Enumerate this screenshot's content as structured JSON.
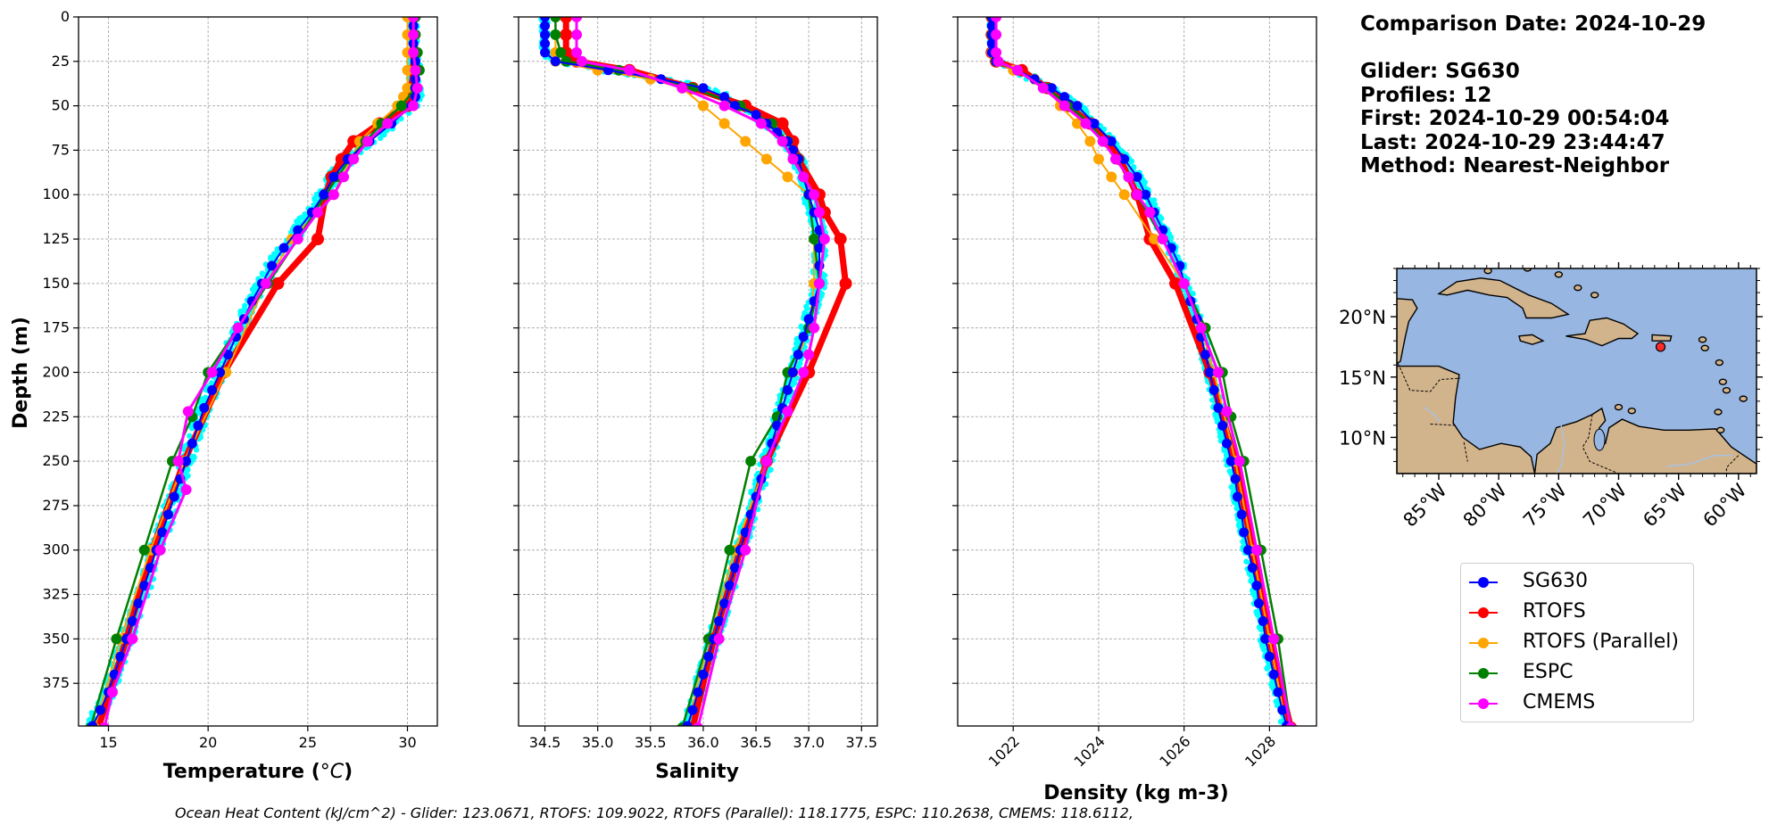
{
  "info": {
    "comparison_date": "Comparison Date: 2024-10-29",
    "glider": "Glider: SG630",
    "profiles": "Profiles: 12",
    "first": "First: 2024-10-29 00:54:04",
    "last": "Last: 2024-10-29 23:44:47",
    "method": "Method: Nearest-Neighbor"
  },
  "footer": "Ocean Heat Content (kJ/cm^2) - Glider: 123.0671,  RTOFS: 109.9022,  RTOFS (Parallel): 118.1775,  ESPC: 110.2638,  CMEMS: 118.6112,",
  "legend": [
    {
      "label": "SG630",
      "color": "#0000ff"
    },
    {
      "label": "RTOFS",
      "color": "#ff0000"
    },
    {
      "label": "RTOFS (Parallel)",
      "color": "#ffa500"
    },
    {
      "label": "ESPC",
      "color": "#008000"
    },
    {
      "label": "CMEMS",
      "color": "#ff00ff"
    }
  ],
  "colors": {
    "SG630": "#0000ff",
    "RTOFS": "#ff0000",
    "RTOFS (Parallel)": "#ffa500",
    "ESPC": "#008000",
    "CMEMS": "#ff00ff",
    "glider_scatter": "#00ffff",
    "ocean": "#97b6e1",
    "land": "#d2b48c"
  },
  "chart_data": [
    {
      "type": "line",
      "xlabel": "Temperature (°C)",
      "ylabel": "Depth (m)",
      "xlim": [
        13.5,
        31.5
      ],
      "ylim": [
        399,
        0
      ],
      "y_inverted": true,
      "grid": true,
      "xticks": [
        "15",
        "20",
        "25",
        "30"
      ],
      "yticks": [
        "0",
        "25",
        "50",
        "75",
        "100",
        "125",
        "150",
        "175",
        "200",
        "225",
        "250",
        "275",
        "300",
        "325",
        "350",
        "375"
      ],
      "series": [
        {
          "name": "SG630",
          "depth": [
            0,
            5,
            10,
            15,
            20,
            25,
            30,
            35,
            40,
            45,
            50,
            60,
            70,
            80,
            90,
            100,
            110,
            120,
            130,
            140,
            150,
            160,
            170,
            180,
            190,
            200,
            210,
            220,
            230,
            240,
            250,
            260,
            270,
            280,
            290,
            300,
            310,
            320,
            330,
            340,
            350,
            360,
            370,
            380,
            390,
            399
          ],
          "values": [
            30.3,
            30.3,
            30.3,
            30.3,
            30.3,
            30.4,
            30.4,
            30.4,
            30.4,
            30.4,
            30.2,
            29.2,
            28.1,
            27.0,
            26.3,
            25.8,
            25.2,
            24.5,
            23.8,
            23.2,
            22.7,
            22.2,
            21.8,
            21.4,
            21.0,
            20.6,
            20.2,
            19.8,
            19.5,
            19.2,
            18.9,
            18.6,
            18.3,
            18.0,
            17.7,
            17.4,
            17.1,
            16.8,
            16.5,
            16.2,
            15.9,
            15.6,
            15.3,
            15.0,
            14.6,
            14.2
          ]
        },
        {
          "name": "RTOFS",
          "depth": [
            0,
            10,
            20,
            30,
            40,
            50,
            60,
            70,
            80,
            90,
            100,
            125,
            150,
            200,
            250,
            300,
            350,
            400
          ],
          "values": [
            30.3,
            30.3,
            30.3,
            30.3,
            30.2,
            30.0,
            28.6,
            27.3,
            26.7,
            26.2,
            25.9,
            25.5,
            23.5,
            20.8,
            18.8,
            17.2,
            15.9,
            14.5
          ]
        },
        {
          "name": "RTOFS (Parallel)",
          "depth": [
            0,
            10,
            20,
            30,
            40,
            45,
            50,
            60,
            70,
            80,
            90,
            100,
            125,
            150,
            200,
            250,
            300,
            350,
            400
          ],
          "values": [
            30.0,
            30.0,
            30.0,
            30.0,
            30.0,
            29.8,
            29.5,
            28.5,
            27.6,
            27.2,
            26.7,
            26.3,
            24.2,
            22.9,
            20.9,
            18.8,
            17.1,
            15.6,
            14.3
          ]
        },
        {
          "name": "ESPC",
          "depth": [
            0,
            10,
            20,
            30,
            40,
            50,
            60,
            70,
            80,
            90,
            100,
            125,
            150,
            175,
            200,
            225,
            250,
            300,
            350,
            400
          ],
          "values": [
            30.4,
            30.4,
            30.5,
            30.6,
            30.4,
            29.7,
            28.7,
            27.9,
            27.1,
            26.5,
            25.9,
            24.5,
            23.0,
            21.5,
            20.0,
            19.2,
            18.2,
            16.8,
            15.4,
            14.1
          ]
        },
        {
          "name": "CMEMS",
          "depth": [
            0,
            10,
            20,
            30,
            40,
            50,
            60,
            70,
            80,
            90,
            100,
            110,
            125,
            150,
            175,
            200,
            222,
            250,
            266,
            300,
            350,
            380,
            400
          ],
          "values": [
            30.3,
            30.3,
            30.3,
            30.4,
            30.5,
            30.3,
            29.0,
            28.0,
            27.3,
            26.8,
            26.3,
            25.5,
            24.5,
            22.9,
            21.5,
            20.2,
            19.0,
            18.5,
            18.9,
            17.6,
            16.2,
            15.2,
            14.8
          ]
        }
      ]
    },
    {
      "type": "line",
      "xlabel": "Salinity",
      "xlim": [
        34.25,
        37.65
      ],
      "ylim": [
        399,
        0
      ],
      "y_inverted": true,
      "grid": true,
      "xticks": [
        "34.5",
        "35.0",
        "35.5",
        "36.0",
        "36.5",
        "37.0",
        "37.5"
      ],
      "series": [
        {
          "name": "SG630",
          "depth": [
            0,
            5,
            10,
            15,
            20,
            25,
            30,
            35,
            40,
            45,
            50,
            55,
            60,
            65,
            70,
            75,
            80,
            90,
            100,
            110,
            120,
            130,
            140,
            150,
            160,
            170,
            180,
            190,
            200,
            210,
            220,
            230,
            240,
            250,
            260,
            270,
            280,
            290,
            300,
            310,
            320,
            330,
            340,
            350,
            360,
            370,
            380,
            390,
            399
          ],
          "values": [
            34.5,
            34.5,
            34.5,
            34.5,
            34.5,
            34.6,
            35.1,
            35.6,
            36.0,
            36.2,
            36.3,
            36.5,
            36.6,
            36.7,
            36.8,
            36.85,
            36.9,
            36.95,
            37.0,
            37.05,
            37.1,
            37.1,
            37.1,
            37.1,
            37.05,
            37.0,
            36.95,
            36.9,
            36.85,
            36.8,
            36.75,
            36.7,
            36.65,
            36.6,
            36.55,
            36.5,
            36.45,
            36.4,
            36.35,
            36.3,
            36.25,
            36.2,
            36.15,
            36.1,
            36.05,
            36.0,
            35.95,
            35.9,
            35.85
          ]
        },
        {
          "name": "RTOFS",
          "depth": [
            0,
            10,
            20,
            25,
            30,
            40,
            50,
            60,
            70,
            80,
            100,
            110,
            125,
            150,
            200,
            250,
            300,
            350,
            400
          ],
          "values": [
            34.7,
            34.7,
            34.7,
            34.8,
            35.3,
            35.9,
            36.4,
            36.75,
            36.85,
            36.9,
            37.1,
            37.15,
            37.3,
            37.35,
            37.0,
            36.6,
            36.35,
            36.1,
            35.9
          ]
        },
        {
          "name": "RTOFS (Parallel)",
          "depth": [
            0,
            10,
            20,
            25,
            30,
            35,
            40,
            50,
            60,
            70,
            80,
            90,
            100,
            125,
            150,
            175,
            200,
            250,
            300,
            350,
            400
          ],
          "values": [
            34.6,
            34.6,
            34.6,
            34.6,
            35.0,
            35.5,
            35.8,
            36.0,
            36.2,
            36.4,
            36.6,
            36.8,
            37.0,
            37.05,
            37.05,
            37.0,
            36.85,
            36.6,
            36.3,
            36.05,
            35.85
          ]
        },
        {
          "name": "ESPC",
          "depth": [
            0,
            10,
            20,
            25,
            30,
            40,
            50,
            60,
            70,
            80,
            90,
            100,
            125,
            150,
            175,
            200,
            225,
            250,
            300,
            350,
            400
          ],
          "values": [
            34.6,
            34.6,
            34.65,
            34.7,
            35.2,
            35.9,
            36.35,
            36.65,
            36.8,
            36.9,
            36.95,
            37.0,
            37.05,
            37.1,
            37.0,
            36.8,
            36.7,
            36.45,
            36.25,
            36.05,
            35.8
          ]
        },
        {
          "name": "CMEMS",
          "depth": [
            0,
            10,
            20,
            25,
            30,
            40,
            50,
            60,
            70,
            80,
            90,
            100,
            110,
            125,
            150,
            175,
            190,
            200,
            222,
            250,
            300,
            350,
            400
          ],
          "values": [
            34.8,
            34.8,
            34.8,
            34.85,
            35.3,
            35.8,
            36.2,
            36.55,
            36.75,
            36.85,
            36.95,
            37.05,
            37.1,
            37.15,
            37.1,
            37.05,
            37.0,
            36.95,
            36.8,
            36.6,
            36.4,
            36.15,
            35.95
          ]
        }
      ]
    },
    {
      "type": "line",
      "xlabel": "Density (kg m-3)",
      "xlim": [
        1020.7,
        1029.1
      ],
      "ylim": [
        399,
        0
      ],
      "y_inverted": true,
      "grid": true,
      "xticks": [
        "1022",
        "1024",
        "1026",
        "1028"
      ],
      "series": [
        {
          "name": "SG630",
          "depth": [
            0,
            5,
            10,
            15,
            20,
            25,
            30,
            35,
            40,
            45,
            50,
            60,
            70,
            80,
            90,
            100,
            110,
            120,
            130,
            140,
            150,
            160,
            170,
            180,
            190,
            200,
            210,
            220,
            230,
            240,
            250,
            260,
            270,
            280,
            290,
            300,
            310,
            320,
            330,
            340,
            350,
            360,
            370,
            380,
            390,
            399
          ],
          "values": [
            1021.5,
            1021.5,
            1021.5,
            1021.5,
            1021.5,
            1021.6,
            1022.1,
            1022.5,
            1022.9,
            1023.2,
            1023.5,
            1023.9,
            1024.3,
            1024.6,
            1024.9,
            1025.1,
            1025.3,
            1025.5,
            1025.7,
            1025.9,
            1026.0,
            1026.15,
            1026.3,
            1026.4,
            1026.5,
            1026.6,
            1026.7,
            1026.8,
            1026.9,
            1027.0,
            1027.1,
            1027.2,
            1027.25,
            1027.35,
            1027.4,
            1027.5,
            1027.6,
            1027.7,
            1027.75,
            1027.85,
            1027.9,
            1028.0,
            1028.1,
            1028.2,
            1028.3,
            1028.4
          ]
        },
        {
          "name": "RTOFS",
          "depth": [
            0,
            10,
            20,
            25,
            30,
            40,
            50,
            60,
            70,
            80,
            100,
            125,
            150,
            200,
            250,
            300,
            350,
            400
          ],
          "values": [
            1021.5,
            1021.5,
            1021.5,
            1021.6,
            1022.2,
            1022.8,
            1023.3,
            1023.8,
            1024.2,
            1024.5,
            1024.9,
            1025.2,
            1025.8,
            1026.6,
            1027.2,
            1027.6,
            1028.0,
            1028.5
          ]
        },
        {
          "name": "RTOFS (Parallel)",
          "depth": [
            0,
            10,
            20,
            25,
            30,
            35,
            40,
            50,
            60,
            70,
            80,
            90,
            100,
            125,
            150,
            175,
            200,
            250,
            300,
            350,
            400
          ],
          "values": [
            1021.5,
            1021.5,
            1021.5,
            1021.6,
            1022.0,
            1022.5,
            1022.8,
            1023.1,
            1023.5,
            1023.8,
            1024.0,
            1024.3,
            1024.6,
            1025.3,
            1026.0,
            1026.4,
            1026.7,
            1027.2,
            1027.6,
            1028.0,
            1028.4
          ]
        },
        {
          "name": "ESPC",
          "depth": [
            0,
            10,
            20,
            25,
            30,
            40,
            50,
            60,
            70,
            80,
            90,
            100,
            125,
            150,
            175,
            200,
            225,
            250,
            300,
            350,
            400
          ],
          "values": [
            1021.5,
            1021.5,
            1021.55,
            1021.6,
            1022.1,
            1022.8,
            1023.3,
            1023.8,
            1024.1,
            1024.4,
            1024.7,
            1024.9,
            1025.5,
            1026.0,
            1026.5,
            1026.9,
            1027.1,
            1027.4,
            1027.8,
            1028.2,
            1028.5
          ]
        },
        {
          "name": "CMEMS",
          "depth": [
            0,
            10,
            20,
            25,
            30,
            40,
            50,
            60,
            70,
            80,
            90,
            100,
            110,
            125,
            150,
            175,
            200,
            222,
            250,
            300,
            350,
            400
          ],
          "values": [
            1021.6,
            1021.6,
            1021.6,
            1021.65,
            1022.1,
            1022.7,
            1023.2,
            1023.7,
            1024.1,
            1024.4,
            1024.7,
            1024.9,
            1025.2,
            1025.5,
            1026.0,
            1026.4,
            1026.8,
            1027.0,
            1027.3,
            1027.7,
            1028.1,
            1028.5
          ]
        }
      ]
    },
    {
      "type": "map",
      "lon_range": [
        -88.5,
        -58.5
      ],
      "lat_range": [
        7,
        24
      ],
      "xticks": [
        "85°W",
        "80°W",
        "75°W",
        "70°W",
        "65°W",
        "60°W"
      ],
      "yticks": [
        "20°N",
        "15°N",
        "10°N"
      ],
      "marker": {
        "lon": -66.5,
        "lat": 17.5
      }
    }
  ]
}
